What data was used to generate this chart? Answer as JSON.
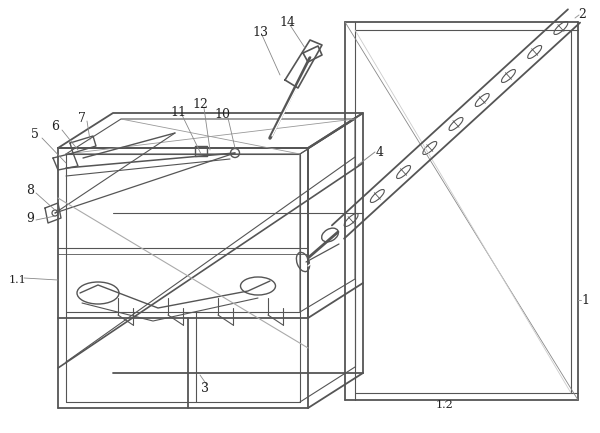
{
  "bg_color": "#ffffff",
  "line_color": "#555555",
  "lw_main": 1.3,
  "lw_thin": 0.8,
  "lw_detail": 0.6
}
